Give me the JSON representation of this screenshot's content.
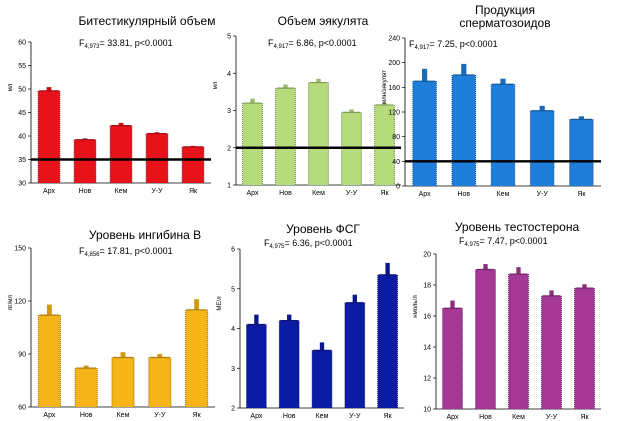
{
  "categories": [
    "Арх",
    "Нов",
    "Кем",
    "У-У",
    "Як"
  ],
  "chart_data": [
    {
      "type": "bar",
      "title": "Битестикулярный объем",
      "stat": {
        "prefix": "F",
        "sub": "4,973",
        "rest": "= 33.81, p<0.0001"
      },
      "ylabel": "мл",
      "ylim": [
        30,
        60
      ],
      "yticks": [
        "30",
        "35",
        "40",
        "45",
        "50",
        "55",
        "60"
      ],
      "values": [
        49.6,
        39.2,
        42.2,
        40.5,
        37.7
      ],
      "errors": [
        0.8,
        0.3,
        0.6,
        0.3,
        0.2
      ],
      "ref": 35,
      "color": "#e8131a"
    },
    {
      "type": "bar",
      "title": "Объем эякулята",
      "stat": {
        "prefix": "F",
        "sub": "4,917",
        "rest": "= 6.86, p<0.0001"
      },
      "ylabel": "мл",
      "ylim": [
        1,
        5
      ],
      "yticks": [
        "1",
        "2",
        "3",
        "4",
        "5"
      ],
      "values": [
        3.2,
        3.6,
        3.75,
        2.95,
        3.15
      ],
      "errors": [
        0.12,
        0.1,
        0.1,
        0.08,
        0.06
      ],
      "ref": 2,
      "color": "#b5db7c"
    },
    {
      "type": "bar",
      "title": "Продукция сперматозоидов",
      "stat": {
        "prefix": "F",
        "sub": "4,917",
        "rest": "= 7.25, p<0.0001"
      },
      "ylabel": "млн/эякулят",
      "ylim": [
        0,
        240
      ],
      "yticks": [
        "0",
        "40",
        "80",
        "120",
        "160",
        "200",
        "240"
      ],
      "values": [
        170,
        180,
        165,
        122,
        108
      ],
      "errors": [
        20,
        18,
        9,
        8,
        5
      ],
      "ref": 40,
      "color": "#1f7ed9"
    },
    {
      "type": "bar",
      "title": "Уровень ингибина В",
      "stat": {
        "prefix": "F",
        "sub": "4,856",
        "rest": "= 17.81, p<0.0001"
      },
      "ylabel": "пг/мл",
      "ylim": [
        60,
        150
      ],
      "yticks": [
        "60",
        "90",
        "120",
        "150"
      ],
      "values": [
        112,
        82,
        88,
        88,
        115
      ],
      "errors": [
        6,
        1.5,
        3,
        2,
        6
      ],
      "ref": null,
      "color": "#f5b418"
    },
    {
      "type": "bar",
      "title": "Уровень ФСГ",
      "stat": {
        "prefix": "F",
        "sub": "4,975",
        "rest": "= 6.36, p<0.0001"
      },
      "ylabel": "МЕ/л",
      "ylim": [
        2,
        6
      ],
      "yticks": [
        "2",
        "3",
        "4",
        "5",
        "6"
      ],
      "values": [
        4.1,
        4.2,
        3.45,
        4.65,
        5.35
      ],
      "errors": [
        0.25,
        0.15,
        0.2,
        0.2,
        0.3
      ],
      "ref": null,
      "color": "#0c1ba3"
    },
    {
      "type": "bar",
      "title": "Уровень тестостерона",
      "stat": {
        "prefix": "F",
        "sub": "4,975",
        "rest": "= 7.47, p<0.0001"
      },
      "ylabel": "нмоль/л",
      "ylim": [
        10,
        20
      ],
      "yticks": [
        "10",
        "12",
        "14",
        "16",
        "18",
        "20"
      ],
      "values": [
        16.5,
        19.0,
        18.7,
        17.3,
        17.8
      ],
      "errors": [
        0.5,
        0.35,
        0.45,
        0.35,
        0.25
      ],
      "ref": null,
      "color": "#a43894"
    }
  ]
}
